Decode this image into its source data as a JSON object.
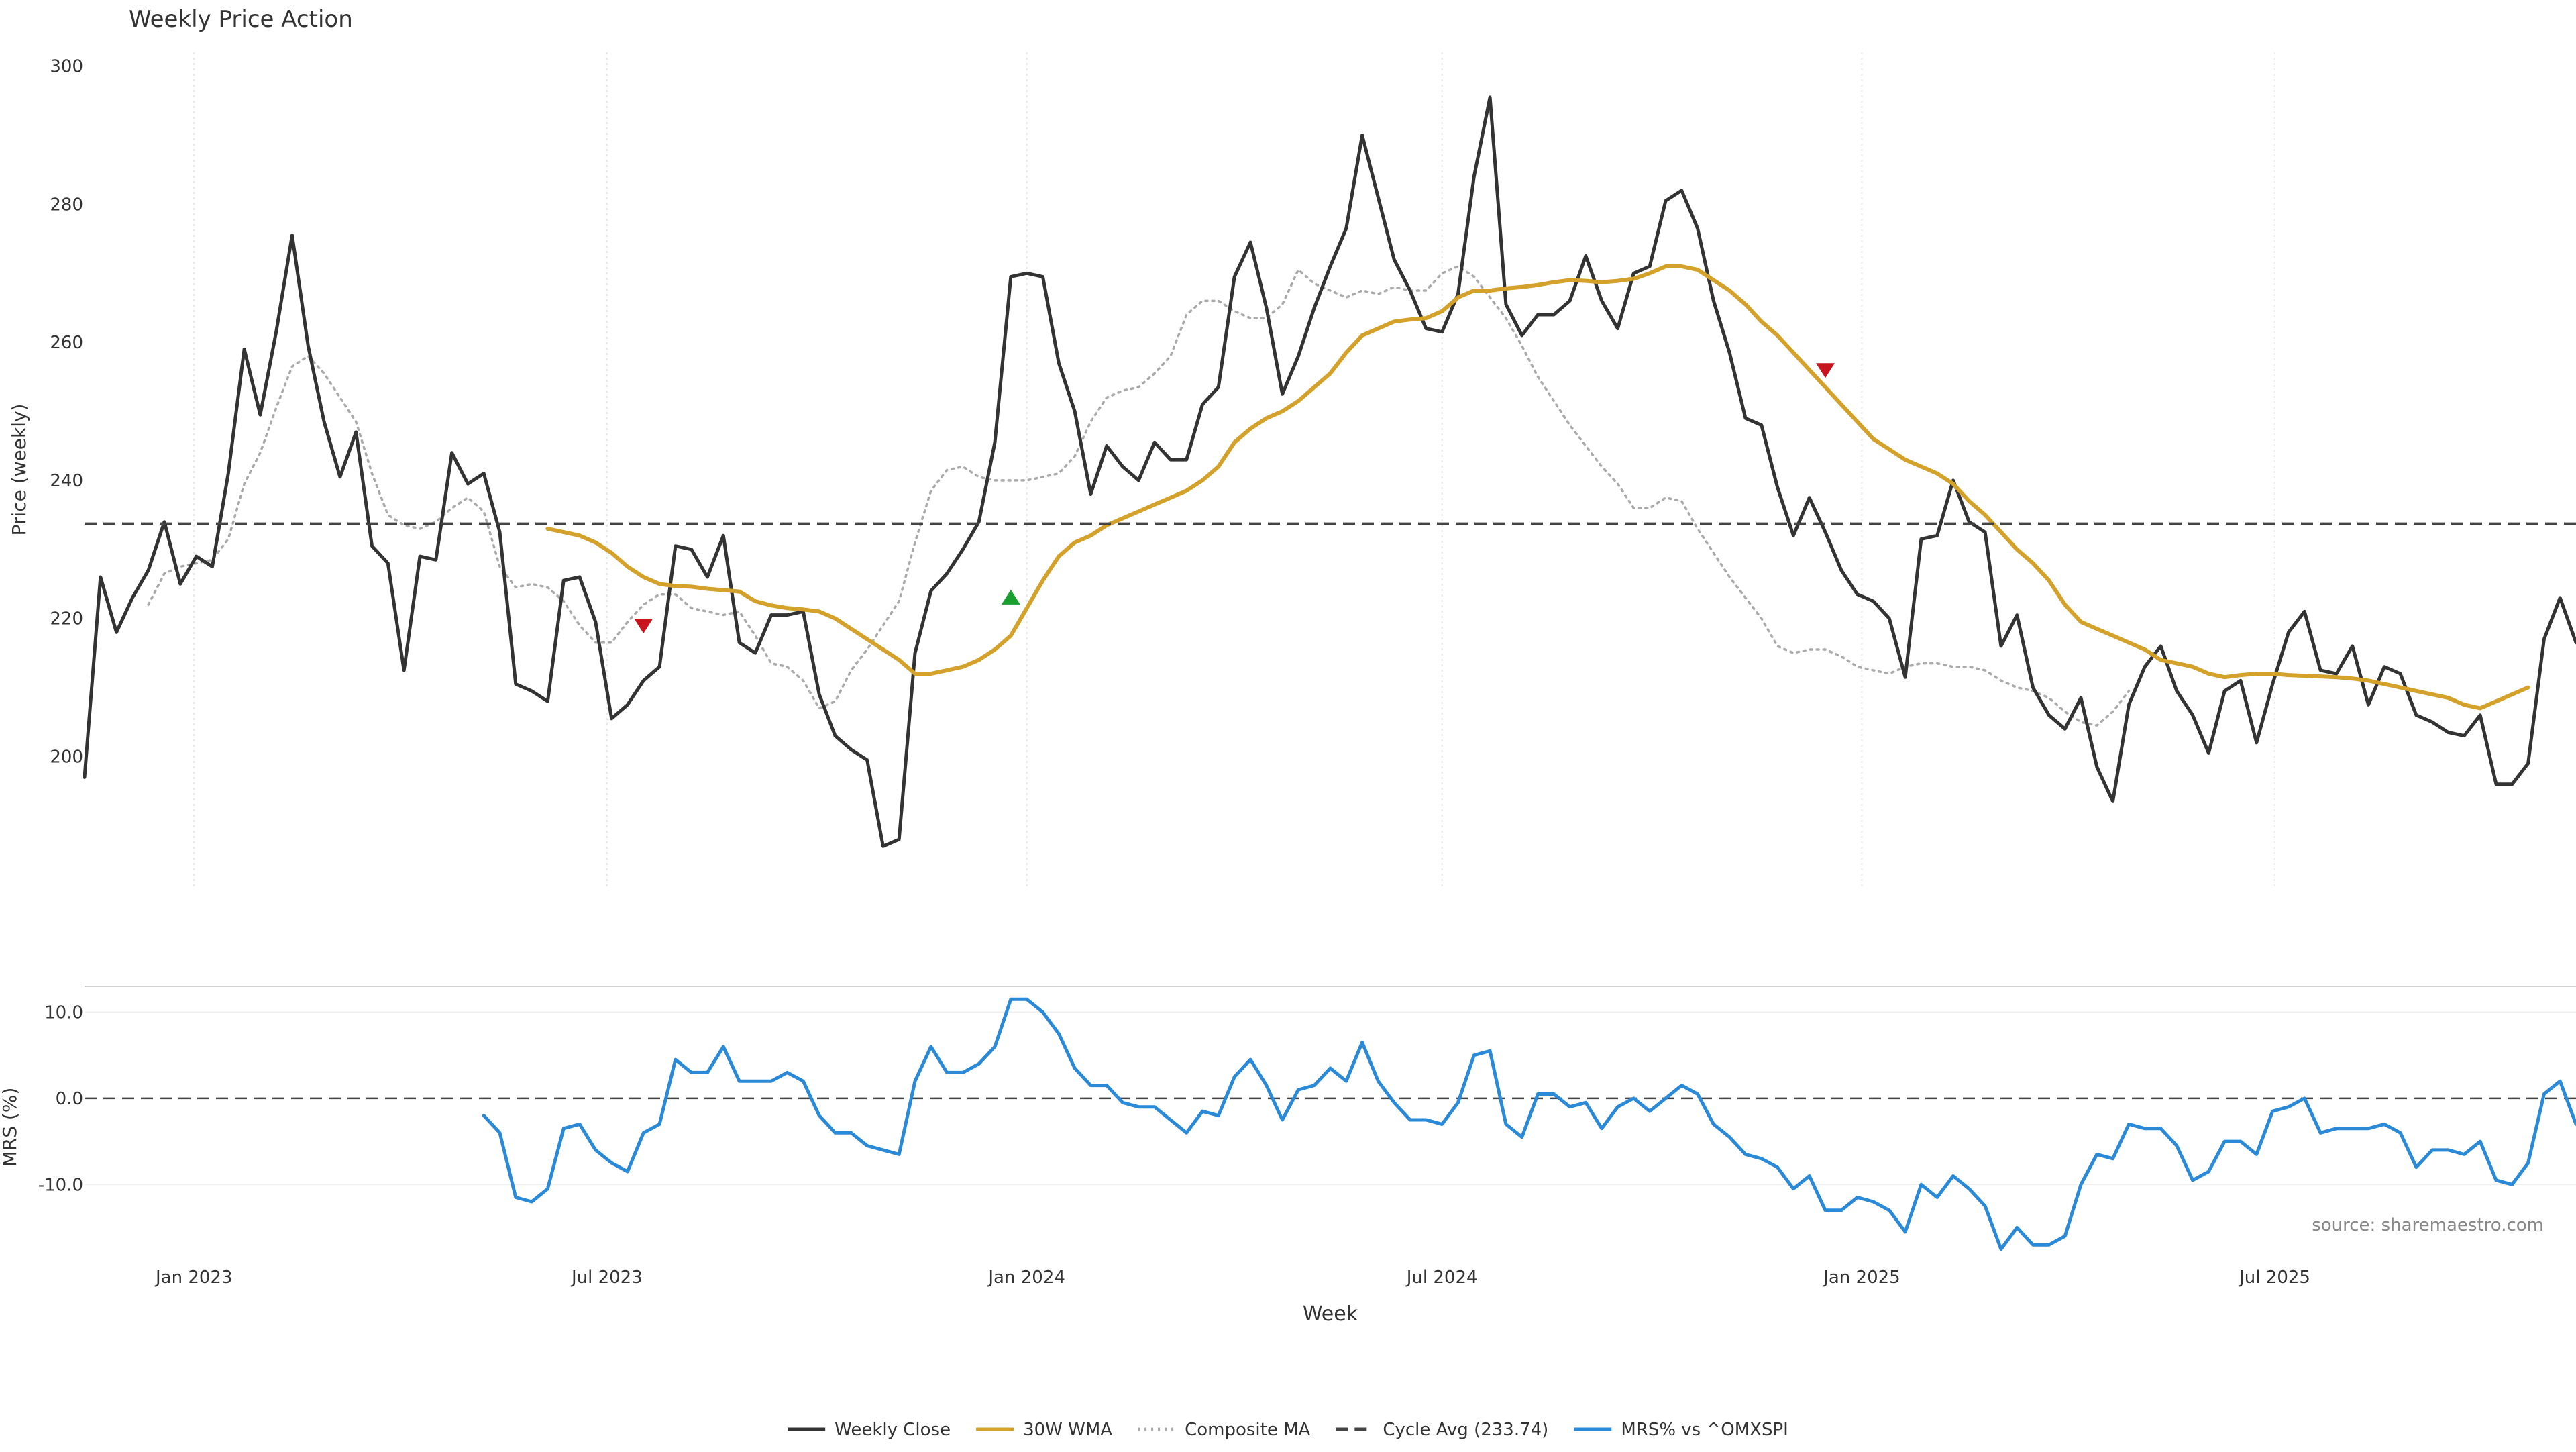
{
  "chart_data": [
    {
      "type": "line",
      "title": "Weekly Price Action",
      "ylabel": "Price (weekly)",
      "xlabel": "Week",
      "ylim": [
        181,
        302
      ],
      "xlim": [
        "2022-11-14",
        "2025-11-10"
      ],
      "grid": "vertical lines at x ticks, dotted",
      "yticks": [
        200,
        220,
        240,
        260,
        280,
        300
      ],
      "xticks": [
        {
          "date": "2023-01-01",
          "label": "Jan 2023"
        },
        {
          "date": "2023-07-01",
          "label": "Jul 2023"
        },
        {
          "date": "2024-01-01",
          "label": "Jan 2024"
        },
        {
          "date": "2024-07-01",
          "label": "Jul 2024"
        },
        {
          "date": "2025-01-01",
          "label": "Jan 2025"
        },
        {
          "date": "2025-07-01",
          "label": "Jul 2025"
        }
      ],
      "x_start": "2022-11-14",
      "x_step_days": 7,
      "series": [
        {
          "name": "Weekly Close",
          "color": "#333333",
          "style": "solid",
          "values": [
            197.0,
            226.0,
            218.0,
            223.0,
            227.0,
            234.0,
            225.0,
            229.0,
            227.5,
            241.0,
            259.0,
            249.5,
            261.5,
            275.5,
            259.5,
            248.5,
            240.5,
            247.0,
            230.5,
            228.0,
            212.5,
            229.0,
            228.5,
            244.0,
            239.5,
            241.0,
            232.5,
            210.5,
            209.5,
            208.0,
            225.5,
            226.0,
            219.5,
            205.5,
            207.5,
            211.0,
            213.0,
            230.5,
            230.0,
            226.0,
            232.0,
            216.5,
            215.0,
            220.5,
            220.5,
            221.0,
            209.0,
            203.0,
            201.0,
            199.5,
            187.0,
            188.0,
            215.0,
            224.0,
            226.5,
            230.0,
            234.0,
            245.5,
            269.5,
            270.0,
            269.5,
            257.0,
            250.0,
            238.0,
            245.0,
            242.0,
            240.0,
            245.5,
            243.0,
            243.0,
            251.0,
            253.5,
            269.5,
            274.5,
            265.0,
            252.5,
            258.0,
            265.0,
            271.0,
            276.5,
            290.0,
            281.0,
            272.0,
            267.5,
            262.0,
            261.5,
            267.0,
            284.0,
            295.5,
            265.5,
            261.0,
            264.0,
            264.0,
            266.0,
            272.5,
            266.0,
            262.0,
            270.0,
            271.0,
            280.5,
            282.0,
            276.5,
            266.0,
            258.5,
            249.0,
            248.0,
            239.0,
            232.0,
            237.5,
            232.5,
            227.0,
            223.5,
            222.5,
            220.0,
            211.5,
            231.5,
            232.0,
            240.0,
            234.0,
            232.5,
            216.0,
            220.5,
            210.0,
            206.0,
            204.0,
            208.5,
            198.5,
            193.5,
            207.5,
            213.0,
            216.0,
            209.5,
            206.0,
            200.5,
            209.5,
            211.0,
            202.0,
            210.5,
            218.0,
            221.0,
            212.5,
            212.0,
            216.0,
            207.5,
            213.0,
            212.0,
            206.0,
            205.0,
            203.5,
            203.0,
            206.0,
            196.0,
            196.0,
            199.0,
            217.0,
            223.0,
            216.5
          ]
        },
        {
          "name": "30W WMA",
          "color": "#d4a22a",
          "style": "solid",
          "start_index": 29,
          "values": [
            233.0,
            232.5,
            232.0,
            231.0,
            229.5,
            227.5,
            226.0,
            225.0,
            224.7,
            224.6,
            224.3,
            224.1,
            223.9,
            222.5,
            221.9,
            221.5,
            221.3,
            221.0,
            220.0,
            218.5,
            217.0,
            215.5,
            214.0,
            212.0,
            212.0,
            212.5,
            213.0,
            214.0,
            215.5,
            217.5,
            221.5,
            225.5,
            229.0,
            231.0,
            232.0,
            233.5,
            234.5,
            235.5,
            236.5,
            237.5,
            238.5,
            240.0,
            242.0,
            245.5,
            247.5,
            249.0,
            250.0,
            251.5,
            253.5,
            255.5,
            258.5,
            261.0,
            262.0,
            263.0,
            263.3,
            263.5,
            264.5,
            266.5,
            267.5,
            267.5,
            267.8,
            268.0,
            268.3,
            268.7,
            269.0,
            268.9,
            268.7,
            268.9,
            269.2,
            270.0,
            271.0,
            271.0,
            270.5,
            269.0,
            267.5,
            265.5,
            263.0,
            261.0,
            258.5,
            256.0,
            253.5,
            251.0,
            248.5,
            246.0,
            244.5,
            243.0,
            242.0,
            241.0,
            239.5,
            237.0,
            235.0,
            232.5,
            230.0,
            228.0,
            225.5,
            222.0,
            219.5,
            218.5,
            217.5,
            216.5,
            215.5,
            214.0,
            213.5,
            213.0,
            212.0,
            211.5,
            211.8,
            212.0,
            212.0,
            211.8,
            211.7,
            211.6,
            211.5,
            211.3,
            211.0,
            210.5,
            210.0,
            209.5,
            209.0,
            208.5,
            207.5,
            207.0,
            208.0,
            209.0,
            210.0
          ]
        },
        {
          "name": "Composite MA",
          "color": "#aaaaaa",
          "style": "dotted",
          "start_index": 4,
          "values": [
            222.0,
            226.5,
            227.5,
            228.0,
            228.5,
            231.5,
            239.5,
            244.0,
            250.5,
            256.5,
            258.0,
            255.5,
            252.0,
            248.5,
            241.0,
            235.0,
            233.5,
            233.0,
            234.0,
            236.0,
            237.5,
            235.5,
            227.5,
            224.5,
            225.0,
            224.5,
            222.5,
            219.0,
            216.5,
            216.5,
            219.5,
            222.0,
            223.5,
            223.5,
            221.5,
            221.0,
            220.5,
            221.0,
            217.5,
            213.5,
            213.0,
            211.0,
            207.0,
            208.0,
            212.5,
            215.5,
            219.0,
            222.5,
            231.0,
            238.5,
            241.5,
            242.0,
            240.5,
            240.0,
            240.0,
            240.0,
            240.5,
            241.0,
            243.5,
            248.5,
            252.0,
            253.0,
            253.5,
            255.5,
            258.0,
            264.0,
            266.0,
            266.0,
            264.5,
            263.5,
            263.5,
            265.5,
            270.5,
            268.5,
            267.5,
            266.5,
            267.5,
            267.0,
            268.0,
            267.5,
            267.5,
            270.0,
            271.0,
            269.5,
            266.5,
            263.5,
            259.5,
            255.0,
            251.5,
            248.0,
            245.0,
            242.0,
            239.5,
            236.0,
            236.0,
            237.5,
            237.0,
            233.0,
            229.5,
            226.0,
            223.0,
            220.0,
            216.0,
            215.0,
            215.5,
            215.5,
            214.5,
            213.0,
            212.5,
            212.0,
            213.0,
            213.5,
            213.5,
            213.0,
            213.0,
            212.5,
            211.0,
            210.0,
            209.5,
            208.5,
            206.5,
            205.0,
            204.5,
            206.5,
            209.5
          ]
        },
        {
          "name": "Cycle Avg (233.74)",
          "color": "#444444",
          "style": "dashed",
          "values": [
            233.74
          ]
        }
      ],
      "signals": [
        {
          "type": "sell",
          "index": 35,
          "value": 219.0,
          "color": "#c8141e"
        },
        {
          "type": "buy",
          "index": 58,
          "value": 223.0,
          "color": "#1a9e2e"
        },
        {
          "type": "sell",
          "index": 109,
          "value": 256.0,
          "color": "#c8141e"
        }
      ]
    },
    {
      "type": "line",
      "ylabel": "MRS (%)",
      "ylim": [
        -18,
        13
      ],
      "yticks": [
        {
          "value": 10,
          "label": "10.0"
        },
        {
          "value": 0,
          "label": "0.0"
        },
        {
          "value": -10,
          "label": "-10.0"
        }
      ],
      "zero_line": "dashed",
      "series": [
        {
          "name": "MRS% vs ^OMXSPI",
          "color": "#2a8ad8",
          "style": "solid",
          "start_index": 25,
          "values": [
            -2.0,
            -4.0,
            -11.5,
            -12.0,
            -10.5,
            -3.5,
            -3.0,
            -6.0,
            -7.5,
            -8.5,
            -4.0,
            -3.0,
            4.5,
            3.0,
            3.0,
            6.0,
            2.0,
            2.0,
            2.0,
            3.0,
            2.0,
            -2.0,
            -4.0,
            -4.0,
            -5.5,
            -6.0,
            -6.5,
            2.0,
            6.0,
            3.0,
            3.0,
            4.0,
            6.0,
            11.5,
            11.5,
            10.0,
            7.5,
            3.5,
            1.5,
            1.5,
            -0.5,
            -1.0,
            -1.0,
            -2.5,
            -4.0,
            -1.5,
            -2.0,
            2.5,
            4.5,
            1.5,
            -2.5,
            1.0,
            1.5,
            3.5,
            2.0,
            6.5,
            2.0,
            -0.5,
            -2.5,
            -2.5,
            -3.0,
            -0.5,
            5.0,
            5.5,
            -3.0,
            -4.5,
            0.5,
            0.5,
            -1.0,
            -0.5,
            -3.5,
            -1.0,
            0.0,
            -1.5,
            0.0,
            1.5,
            0.5,
            -3.0,
            -4.5,
            -6.5,
            -7.0,
            -8.0,
            -10.5,
            -9.0,
            -13.0,
            -13.0,
            -11.5,
            -12.0,
            -13.0,
            -15.5,
            -10.0,
            -11.5,
            -9.0,
            -10.5,
            -12.5,
            -17.5,
            -15.0,
            -17.0,
            -17.0,
            -16.0,
            -10.0,
            -6.5,
            -7.0,
            -3.0,
            -3.5,
            -3.5,
            -5.5,
            -9.5,
            -8.5,
            -5.0,
            -5.0,
            -6.5,
            -1.5,
            -1.0,
            0.0,
            -4.0,
            -3.5,
            -3.5,
            -3.5,
            -3.0,
            -4.0,
            -8.0,
            -6.0,
            -6.0,
            -6.5,
            -5.0,
            -9.5,
            -10.0,
            -7.5,
            0.5,
            2.0,
            -3.0
          ]
        }
      ]
    }
  ],
  "source_note": "source: sharemaestro.com",
  "legend": {
    "placement": "bottom-center",
    "items": [
      {
        "label": "Weekly Close",
        "color": "#333333",
        "style": "solid"
      },
      {
        "label": "30W WMA",
        "color": "#d4a22a",
        "style": "solid"
      },
      {
        "label": "Composite MA",
        "color": "#aaaaaa",
        "style": "dotted"
      },
      {
        "label": "Cycle Avg (233.74)",
        "color": "#444444",
        "style": "dashed"
      },
      {
        "label": "MRS% vs ^OMXSPI",
        "color": "#2a8ad8",
        "style": "solid"
      }
    ]
  }
}
